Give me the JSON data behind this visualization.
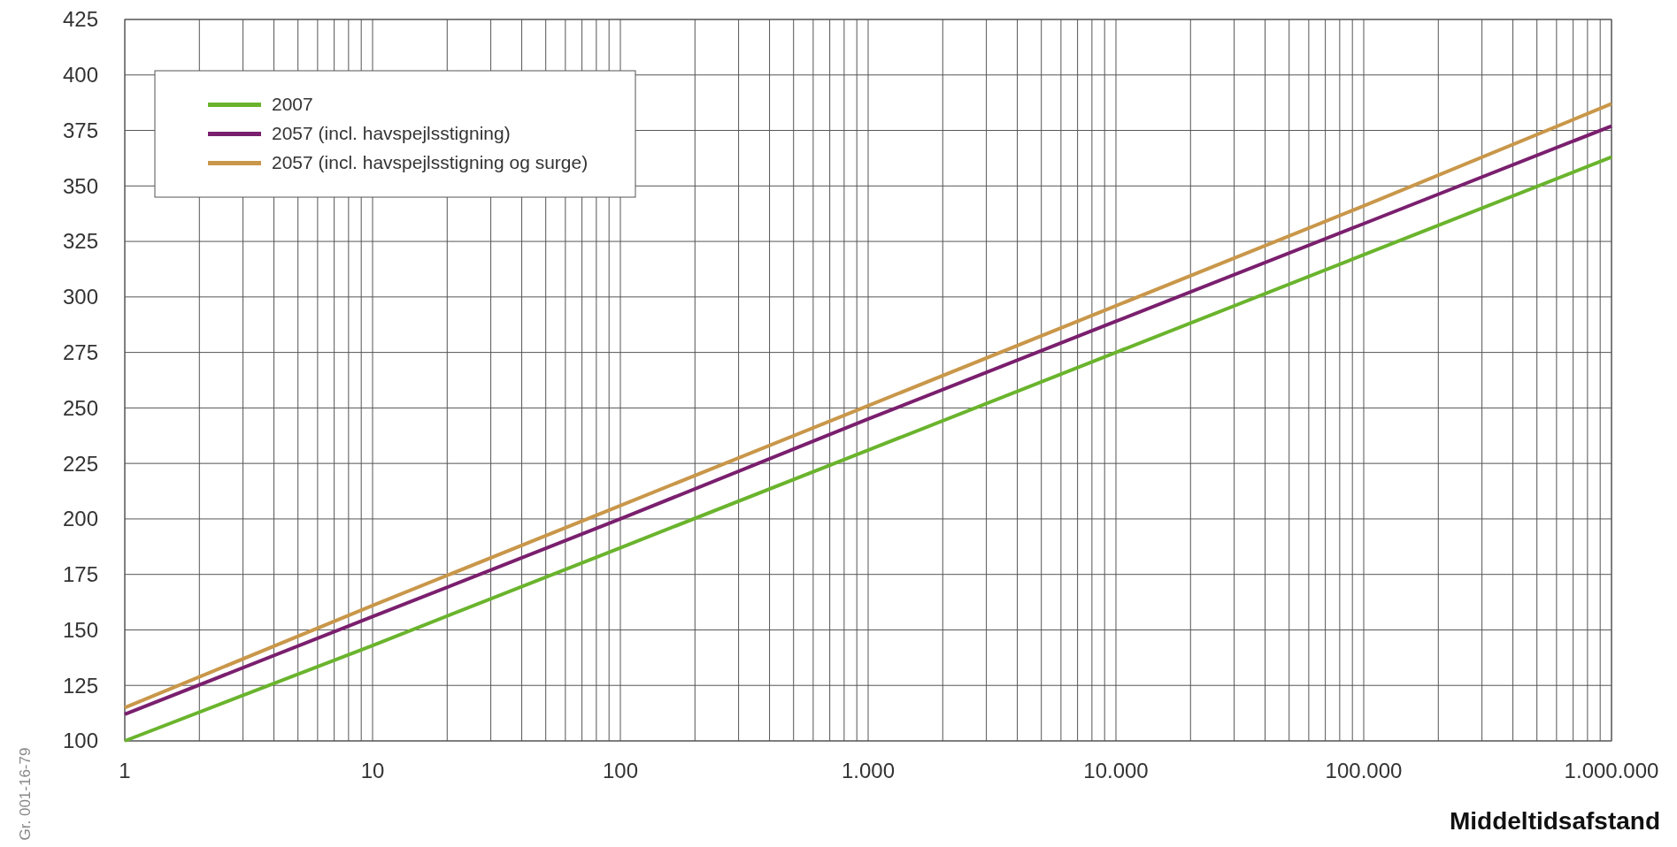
{
  "chart_data": {
    "type": "line",
    "xlabel": "Middeltidsafstand",
    "annotations": [
      "Gr. 001-16-79"
    ],
    "x": [
      1,
      10,
      100,
      1000,
      10000,
      100000,
      1000000
    ],
    "series": [
      {
        "name": "2007",
        "color": "#6ab42d",
        "values": [
          100,
          143,
          187,
          231,
          275,
          319,
          363
        ]
      },
      {
        "name": "2057 (incl. havspejlsstigning)",
        "color": "#7a1f6e",
        "values": [
          112,
          156,
          200,
          245,
          289,
          333,
          377
        ]
      },
      {
        "name": "2057 (incl. havspejlsstigning og surge)",
        "color": "#c9974a",
        "values": [
          115,
          161,
          206,
          251,
          296,
          341,
          387
        ]
      }
    ],
    "log": "x",
    "xlim": [
      1,
      1000000
    ],
    "ylim": [
      100,
      425
    ],
    "yticks": [
      100,
      125,
      150,
      175,
      200,
      225,
      250,
      275,
      300,
      325,
      350,
      375,
      400,
      425
    ],
    "xticks": [
      1,
      {
        "value": 2,
        "label": null
      },
      {
        "value": 3,
        "label": null
      },
      {
        "value": 4,
        "label": null
      },
      {
        "value": 5,
        "label": null
      },
      {
        "value": 6,
        "label": null
      },
      {
        "value": 7,
        "label": null
      },
      {
        "value": 8,
        "label": null
      },
      {
        "value": 9,
        "label": null
      },
      10,
      {
        "value": 20,
        "label": null
      },
      {
        "value": 30,
        "label": null
      },
      {
        "value": 40,
        "label": null
      },
      {
        "value": 50,
        "label": null
      },
      {
        "value": 60,
        "label": null
      },
      {
        "value": 70,
        "label": null
      },
      {
        "value": 80,
        "label": null
      },
      {
        "value": 90,
        "label": null
      },
      100,
      {
        "value": 200,
        "label": null
      },
      {
        "value": 300,
        "label": null
      },
      {
        "value": 400,
        "label": null
      },
      {
        "value": 500,
        "label": null
      },
      {
        "value": 600,
        "label": null
      },
      {
        "value": 700,
        "label": null
      },
      {
        "value": 800,
        "label": null
      },
      {
        "value": 900,
        "label": null
      },
      {
        "value": 1000,
        "label": "1.000"
      },
      {
        "value": 2000,
        "label": null
      },
      {
        "value": 3000,
        "label": null
      },
      {
        "value": 4000,
        "label": null
      },
      {
        "value": 5000,
        "label": null
      },
      {
        "value": 6000,
        "label": null
      },
      {
        "value": 7000,
        "label": null
      },
      {
        "value": 8000,
        "label": null
      },
      {
        "value": 9000,
        "label": null
      },
      {
        "value": 10000,
        "label": "10.000"
      },
      {
        "value": 20000,
        "label": null
      },
      {
        "value": 30000,
        "label": null
      },
      {
        "value": 40000,
        "label": null
      },
      {
        "value": 50000,
        "label": null
      },
      {
        "value": 60000,
        "label": null
      },
      {
        "value": 70000,
        "label": null
      },
      {
        "value": 80000,
        "label": null
      },
      {
        "value": 90000,
        "label": null
      },
      {
        "value": 100000,
        "label": "100.000"
      },
      {
        "value": 200000,
        "label": null
      },
      {
        "value": 300000,
        "label": null
      },
      {
        "value": 400000,
        "label": null
      },
      {
        "value": 500000,
        "label": null
      },
      {
        "value": 600000,
        "label": null
      },
      {
        "value": 700000,
        "label": null
      },
      {
        "value": 800000,
        "label": null
      },
      {
        "value": 900000,
        "label": null
      },
      {
        "value": 1000000,
        "label": "1.000.000"
      }
    ],
    "grid": true,
    "legend": "top left",
    "marker": "none",
    "line_style": "solid"
  }
}
